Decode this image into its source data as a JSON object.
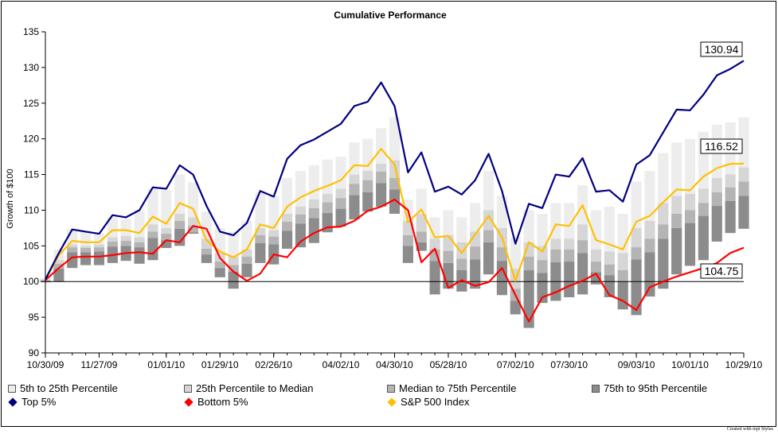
{
  "chart_data": {
    "type": "area",
    "title": "Cumulative Performance",
    "xlabel": "",
    "ylabel": "Growth of $100",
    "ylim": [
      90,
      135
    ],
    "yticks": [
      "90",
      "95",
      "100",
      "105",
      "110",
      "115",
      "120",
      "125",
      "130",
      "135"
    ],
    "xtick_labels": [
      "10/30/09",
      "11/27/09",
      "01/01/10",
      "01/29/10",
      "02/26/10",
      "04/02/10",
      "04/30/10",
      "05/28/10",
      "07/02/10",
      "07/30/10",
      "09/03/10",
      "10/01/10",
      "10/29/10"
    ],
    "xtick_index": [
      0,
      4,
      9,
      13,
      17,
      22,
      26,
      30,
      35,
      39,
      44,
      48,
      52
    ],
    "reference_line": 100,
    "band_colors": [
      "#ededed",
      "#d6d6d6",
      "#b4b4b4",
      "#8c8c8c"
    ],
    "line_colors": {
      "top": "#000080",
      "bottom": "#ff0000",
      "sp500": "#ffc000"
    },
    "end_labels": [
      "130.94",
      "116.52",
      "104.75"
    ],
    "series": [
      {
        "name": "Top 5%",
        "values": [
          100.3,
          104.0,
          107.3,
          107.0,
          106.7,
          109.3,
          109.0,
          110.0,
          113.2,
          113.0,
          116.3,
          115.0,
          110.6,
          107.0,
          106.5,
          108.2,
          112.7,
          111.9,
          117.2,
          119.1,
          119.9,
          121.0,
          122.1,
          124.6,
          125.2,
          127.9,
          124.6,
          115.3,
          118.1,
          112.6,
          113.3,
          112.2,
          114.2,
          117.9,
          112.7,
          105.3,
          110.9,
          110.3,
          115.0,
          114.7,
          117.3,
          112.6,
          112.8,
          111.2,
          116.4,
          117.7,
          120.9,
          124.1,
          124.0,
          126.2,
          128.9,
          129.8,
          130.94
        ]
      },
      {
        "name": "95th Percentile",
        "values": [
          100.5,
          104.5,
          107.4,
          107.1,
          106.8,
          109.0,
          108.8,
          110.0,
          113.0,
          112.8,
          115.0,
          113.9,
          109.8,
          107.5,
          107.0,
          108.5,
          112.5,
          112.0,
          114.5,
          115.5,
          116.3,
          117.1,
          117.5,
          119.5,
          120.0,
          121.5,
          123.0,
          111.5,
          113.0,
          109.0,
          110.0,
          109.0,
          111.0,
          115.5,
          112.0,
          106.2,
          110.0,
          109.5,
          111.0,
          111.0,
          113.5,
          110.0,
          110.5,
          109.5,
          114.0,
          115.5,
          118.0,
          119.5,
          120.0,
          121.0,
          122.0,
          122.3,
          123.0
        ]
      },
      {
        "name": "75th Percentile",
        "values": [
          100.3,
          103.0,
          105.2,
          105.0,
          105.2,
          106.2,
          106.4,
          106.2,
          108.0,
          107.5,
          109.5,
          109.0,
          106.0,
          104.0,
          103.5,
          104.5,
          107.5,
          107.2,
          109.5,
          110.5,
          111.5,
          112.3,
          113.0,
          115.0,
          115.5,
          116.5,
          117.0,
          108.5,
          109.5,
          106.0,
          106.5,
          105.5,
          107.0,
          110.0,
          107.5,
          101.8,
          105.5,
          105.0,
          106.0,
          106.0,
          108.0,
          104.5,
          104.2,
          104.0,
          107.5,
          108.5,
          111.0,
          112.0,
          112.3,
          113.0,
          114.5,
          115.0,
          116.0
        ]
      },
      {
        "name": "Median",
        "values": [
          100.2,
          102.5,
          104.8,
          104.7,
          104.8,
          105.6,
          105.7,
          105.5,
          107.0,
          106.7,
          108.5,
          107.8,
          104.6,
          102.8,
          102.3,
          103.5,
          106.5,
          106.3,
          108.4,
          109.4,
          110.3,
          111.1,
          111.7,
          113.7,
          114.2,
          115.4,
          114.5,
          106.5,
          107.0,
          104.5,
          104.3,
          103.2,
          104.9,
          107.2,
          104.8,
          99.0,
          103.5,
          103.0,
          104.5,
          104.5,
          105.8,
          102.8,
          102.4,
          101.6,
          104.8,
          106.0,
          108.0,
          109.5,
          110.0,
          111.0,
          112.5,
          113.2,
          114.0
        ]
      },
      {
        "name": "25th Percentile",
        "values": [
          100.1,
          101.8,
          104.1,
          104.1,
          104.2,
          104.9,
          105.0,
          104.8,
          106.1,
          105.8,
          107.4,
          106.9,
          103.8,
          101.9,
          101.4,
          102.5,
          105.4,
          105.2,
          107.1,
          108.1,
          108.9,
          109.6,
          110.2,
          112.1,
          112.5,
          113.8,
          112.9,
          105.0,
          105.5,
          102.9,
          102.6,
          101.6,
          103.1,
          105.5,
          102.9,
          97.3,
          101.6,
          101.2,
          102.7,
          102.8,
          104.0,
          101.3,
          100.9,
          100.0,
          103.1,
          104.1,
          106.0,
          107.5,
          108.2,
          109.2,
          110.6,
          111.3,
          112.0
        ]
      },
      {
        "name": "5th Percentile",
        "values": [
          99.9,
          100.0,
          101.9,
          102.3,
          102.3,
          102.6,
          102.9,
          102.5,
          103.0,
          104.7,
          105.0,
          106.7,
          102.6,
          100.6,
          99.0,
          100.6,
          102.6,
          102.4,
          104.6,
          104.8,
          105.4,
          106.9,
          107.7,
          108.7,
          109.8,
          110.5,
          109.5,
          102.6,
          104.3,
          98.2,
          99.0,
          98.6,
          99.0,
          101.0,
          98.1,
          95.4,
          93.5,
          97.0,
          97.3,
          97.8,
          98.2,
          99.6,
          97.8,
          96.1,
          95.3,
          97.9,
          99.0,
          101.0,
          102.2,
          103.0,
          105.6,
          106.8,
          107.4
        ]
      },
      {
        "name": "Bottom 5%",
        "values": [
          100.2,
          101.9,
          103.4,
          103.5,
          103.5,
          103.7,
          104.0,
          104.1,
          103.9,
          105.8,
          105.5,
          107.8,
          107.4,
          103.3,
          101.4,
          100.1,
          101.1,
          103.8,
          103.4,
          105.6,
          106.8,
          107.6,
          107.7,
          108.5,
          109.9,
          110.5,
          111.5,
          110.0,
          102.7,
          104.6,
          99.1,
          100.2,
          99.4,
          99.9,
          101.9,
          98.1,
          94.4,
          97.8,
          98.5,
          99.4,
          100.1,
          101.1,
          98.1,
          97.3,
          96.0,
          99.2,
          100.0,
          100.7,
          101.3,
          101.9,
          102.6,
          104.0,
          104.75
        ]
      },
      {
        "name": "S&P 500 Index",
        "values": [
          100.2,
          103.7,
          105.7,
          105.5,
          105.5,
          107.2,
          107.2,
          106.8,
          109.1,
          108.1,
          111.0,
          110.2,
          105.8,
          104.2,
          103.4,
          104.5,
          108.0,
          107.5,
          110.5,
          111.8,
          112.7,
          113.4,
          114.2,
          116.3,
          116.2,
          118.6,
          116.4,
          108.3,
          110.1,
          106.2,
          106.4,
          104.0,
          106.6,
          109.2,
          106.2,
          100.1,
          105.5,
          104.2,
          108.0,
          107.8,
          110.7,
          105.8,
          105.2,
          104.5,
          108.4,
          109.2,
          111.1,
          112.9,
          112.8,
          114.7,
          115.9,
          116.5,
          116.52
        ]
      }
    ],
    "legend": {
      "placement": "bottom",
      "items": [
        {
          "label": "5th to 25th Percentile",
          "marker": "square",
          "color": "#ededed"
        },
        {
          "label": "25th Percentile to Median",
          "marker": "square",
          "color": "#d6d6d6"
        },
        {
          "label": "Median to 75th Percentile",
          "marker": "square",
          "color": "#b4b4b4"
        },
        {
          "label": "75th to 95th Percentile",
          "marker": "square",
          "color": "#8c8c8c"
        },
        {
          "label": "Top 5%",
          "marker": "diamond",
          "color": "#000080"
        },
        {
          "label": "Bottom 5%",
          "marker": "diamond",
          "color": "#ff0000"
        },
        {
          "label": "S&P 500 Index",
          "marker": "diamond",
          "color": "#ffc000"
        }
      ]
    }
  },
  "credit": "Created with mpi Stylus"
}
